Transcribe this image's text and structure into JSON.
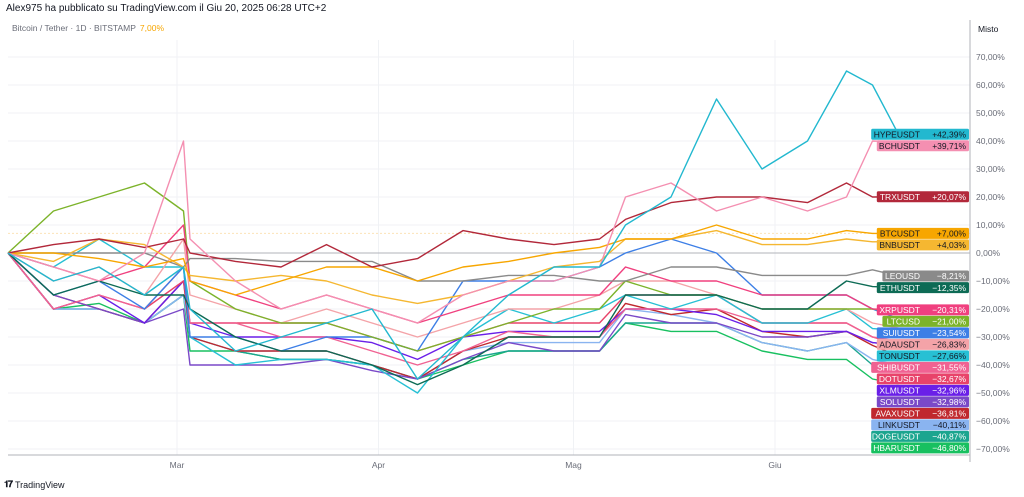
{
  "header": {
    "published": "Alex975 ha pubblicato su TradingView.com il Giu 20, 2025 06:28 UTC+2",
    "symbol": "Bitcoin / Tether · 1D · BITSTAMP",
    "change": "7,00%"
  },
  "footer": {
    "brand": "TradingView",
    "logo": "TV"
  },
  "chart_data": {
    "type": "line",
    "scale_mode": "Misto",
    "y_unit": "%",
    "ylim": [
      -70,
      75
    ],
    "y_ticks": [
      "70,00%",
      "60,00%",
      "50,00%",
      "40,00%",
      "30,00%",
      "20,00%",
      "10,00%",
      "0,00%",
      "−10,00%",
      "−20,00%",
      "−30,00%",
      "−40,00%",
      "−50,00%",
      "−60,00%",
      "−70,00%"
    ],
    "y_tick_values": [
      70,
      60,
      50,
      40,
      30,
      20,
      10,
      0,
      -10,
      -20,
      -30,
      -40,
      -50,
      -60,
      -70
    ],
    "x_ticks": [
      {
        "label": "Mar",
        "date": "2025-03-01"
      },
      {
        "label": "Apr",
        "date": "2025-04-01"
      },
      {
        "label": "Mag",
        "date": "2025-05-01"
      },
      {
        "label": "Giu",
        "date": "2025-06-01"
      }
    ],
    "grid": true,
    "x": [
      "2025-02-03",
      "2025-02-10",
      "2025-02-17",
      "2025-02-24",
      "2025-03-02",
      "2025-03-03",
      "2025-03-10",
      "2025-03-17",
      "2025-03-24",
      "2025-03-31",
      "2025-04-07",
      "2025-04-14",
      "2025-04-21",
      "2025-04-28",
      "2025-05-05",
      "2025-05-09",
      "2025-05-16",
      "2025-05-23",
      "2025-05-30",
      "2025-06-06",
      "2025-06-12",
      "2025-06-16",
      "2025-06-20"
    ],
    "series": [
      {
        "name": "HYPEUSDT",
        "label": "+42,39%",
        "color": "#22b8cf",
        "text": "#131722",
        "values": [
          0,
          -10,
          -5,
          -15,
          -5,
          -20,
          -35,
          -30,
          -25,
          -20,
          -45,
          -30,
          -15,
          -5,
          -5,
          10,
          20,
          55,
          30,
          40,
          65,
          60,
          42.39
        ]
      },
      {
        "name": "BCHUSDT",
        "label": "+39,71%",
        "color": "#f48fb1",
        "text": "#131722",
        "values": [
          0,
          -5,
          -10,
          0,
          40,
          5,
          -10,
          -20,
          -15,
          -20,
          -25,
          -15,
          -10,
          -10,
          -5,
          20,
          25,
          15,
          20,
          15,
          20,
          40,
          39.71
        ]
      },
      {
        "name": "TRXUSDT",
        "label": "+20,07%",
        "color": "#b2283a",
        "text": "#ffffff",
        "values": [
          0,
          3,
          5,
          2,
          5,
          0,
          -3,
          -5,
          3,
          -5,
          -2,
          8,
          5,
          3,
          5,
          12,
          18,
          20,
          20,
          18,
          25,
          20,
          20.07
        ]
      },
      {
        "name": "BTCUSDT",
        "label": "+7,00%",
        "color": "#f7a600",
        "text": "#131722",
        "values": [
          0,
          0,
          -2,
          -5,
          -2,
          -10,
          -15,
          -10,
          -5,
          -5,
          -10,
          -5,
          -3,
          0,
          2,
          5,
          5,
          10,
          5,
          5,
          8,
          7,
          7.0
        ]
      },
      {
        "name": "BNBUSDT",
        "label": "+4,03%",
        "color": "#f5b731",
        "text": "#131722",
        "values": [
          0,
          -3,
          5,
          3,
          -5,
          -8,
          -10,
          -8,
          -10,
          -15,
          -18,
          -15,
          -10,
          -5,
          -3,
          5,
          5,
          8,
          3,
          3,
          5,
          4,
          4.03
        ]
      },
      {
        "name": "LEOUSD",
        "label": "−8,21%",
        "color": "#8a8a8a",
        "text": "#ffffff",
        "values": [
          0,
          0,
          0,
          0,
          -5,
          -2,
          -2,
          -3,
          -3,
          -3,
          -10,
          -10,
          -8,
          -8,
          -10,
          -10,
          -5,
          -5,
          -8,
          -8,
          -8,
          -6,
          -8.21
        ]
      },
      {
        "name": "ETHUSDT",
        "label": "−12,35%",
        "color": "#0d6b55",
        "text": "#ffffff",
        "values": [
          0,
          -15,
          -10,
          -15,
          -15,
          -20,
          -30,
          -35,
          -35,
          -40,
          -47,
          -40,
          -30,
          -30,
          -30,
          -15,
          -15,
          -15,
          -20,
          -20,
          -10,
          -12,
          -12.35
        ]
      },
      {
        "name": "XRPUSDT",
        "label": "−20,31%",
        "color": "#f0407f",
        "text": "#ffffff",
        "values": [
          0,
          -5,
          -10,
          -5,
          10,
          -10,
          -15,
          -20,
          -15,
          -20,
          -25,
          -20,
          -15,
          -15,
          -15,
          -5,
          -10,
          -10,
          -15,
          -15,
          -15,
          -20,
          -20.31
        ]
      },
      {
        "name": "LTCUSD",
        "label": "−21,00%",
        "color": "#7cb32a",
        "text": "#ffffff",
        "values": [
          0,
          15,
          20,
          25,
          15,
          -10,
          -20,
          -25,
          -25,
          -30,
          -35,
          -30,
          -25,
          -20,
          -20,
          -10,
          -15,
          -15,
          -20,
          -20,
          -20,
          -20,
          -21.0
        ]
      },
      {
        "name": "SUIUSDT",
        "label": "−23,54%",
        "color": "#3d7fe6",
        "text": "#ffffff",
        "values": [
          0,
          -15,
          -10,
          -20,
          -5,
          -30,
          -30,
          -35,
          -30,
          -30,
          -35,
          -10,
          -10,
          -10,
          -5,
          0,
          5,
          0,
          -15,
          -15,
          -15,
          -20,
          -23.54
        ]
      },
      {
        "name": "ADAUSDT",
        "label": "−26,83%",
        "color": "#f4a3a8",
        "text": "#131722",
        "values": [
          0,
          -10,
          -5,
          -15,
          5,
          -15,
          -20,
          -25,
          -20,
          -25,
          -30,
          -25,
          -20,
          -20,
          -15,
          -10,
          -10,
          -15,
          -20,
          -20,
          -20,
          -25,
          -26.83
        ]
      },
      {
        "name": "TONUSDT",
        "label": "−27,66%",
        "color": "#27c0d4",
        "text": "#131722",
        "values": [
          0,
          -5,
          5,
          -5,
          -5,
          -30,
          -40,
          -38,
          -38,
          -40,
          -50,
          -30,
          -20,
          -25,
          -20,
          -15,
          -20,
          -15,
          -25,
          -25,
          -20,
          -27,
          -27.66
        ]
      },
      {
        "name": "SHIBUSDT",
        "label": "−31,55%",
        "color": "#f06292",
        "text": "#ffffff",
        "values": [
          0,
          -20,
          -15,
          -20,
          -5,
          -25,
          -25,
          -30,
          -30,
          -35,
          -40,
          -35,
          -28,
          -30,
          -30,
          -20,
          -20,
          -20,
          -25,
          -25,
          -25,
          -30,
          -31.55
        ]
      },
      {
        "name": "DOTUSDT",
        "label": "−32,67%",
        "color": "#e8436a",
        "text": "#ffffff",
        "values": [
          0,
          -20,
          -15,
          -20,
          -10,
          -25,
          -25,
          -25,
          -25,
          -30,
          -35,
          -30,
          -25,
          -25,
          -25,
          -15,
          -15,
          -15,
          -25,
          -25,
          -25,
          -30,
          -32.67
        ]
      },
      {
        "name": "XLMUSDT",
        "label": "−32,96%",
        "color": "#6a1fe8",
        "text": "#ffffff",
        "values": [
          0,
          -20,
          -15,
          -25,
          -10,
          -25,
          -30,
          -30,
          -30,
          -32,
          -38,
          -30,
          -28,
          -28,
          -28,
          -20,
          -20,
          -22,
          -28,
          -28,
          -28,
          -32,
          -32.96
        ]
      },
      {
        "name": "SOLUSDT",
        "label": "−32,98%",
        "color": "#7a49c8",
        "text": "#ffffff",
        "values": [
          0,
          -15,
          -20,
          -25,
          -20,
          -40,
          -40,
          -40,
          -38,
          -42,
          -45,
          -38,
          -32,
          -35,
          -35,
          -22,
          -25,
          -25,
          -30,
          -30,
          -28,
          -32,
          -32.98
        ]
      },
      {
        "name": "AVAXUSDT",
        "label": "−36,81%",
        "color": "#c0282e",
        "text": "#ffffff",
        "values": [
          0,
          -15,
          -20,
          -25,
          -10,
          -30,
          -35,
          -35,
          -35,
          -40,
          -45,
          -35,
          -30,
          -30,
          -30,
          -18,
          -22,
          -20,
          -28,
          -30,
          -28,
          -33,
          -36.81
        ]
      },
      {
        "name": "LINKUSDT",
        "label": "−40,11%",
        "color": "#8ab4f0",
        "text": "#131722",
        "values": [
          0,
          -20,
          -20,
          -25,
          -15,
          -30,
          -35,
          -35,
          -35,
          -40,
          -45,
          -35,
          -32,
          -32,
          -32,
          -20,
          -22,
          -25,
          -32,
          -35,
          -32,
          -38,
          -40.11
        ]
      },
      {
        "name": "DOGEUSDT",
        "label": "−40,87%",
        "color": "#1ba58f",
        "text": "#ffffff",
        "values": [
          0,
          -20,
          -20,
          -25,
          -15,
          -30,
          -35,
          -38,
          -38,
          -40,
          -45,
          -38,
          -35,
          -35,
          -35,
          -25,
          -25,
          -25,
          -32,
          -35,
          -32,
          -40,
          -40.87
        ]
      },
      {
        "name": "HBARUSDT",
        "label": "−46,80%",
        "color": "#18c060",
        "text": "#ffffff",
        "values": [
          0,
          -20,
          -18,
          -25,
          -15,
          -35,
          -35,
          -38,
          -38,
          -40,
          -45,
          -40,
          -35,
          -35,
          -35,
          -25,
          -28,
          -28,
          -35,
          -38,
          -38,
          -45,
          -46.8
        ]
      }
    ]
  }
}
